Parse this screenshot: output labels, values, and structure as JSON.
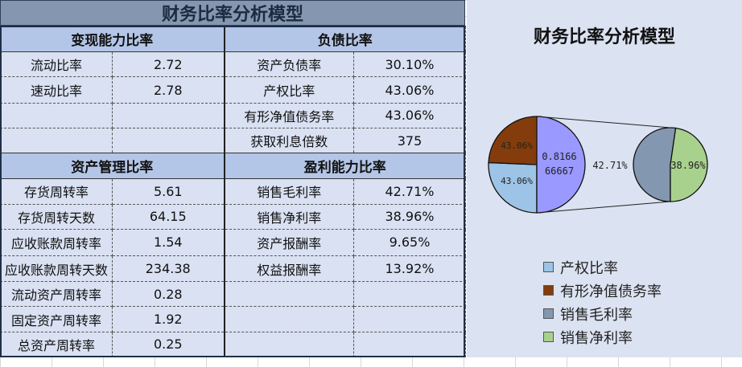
{
  "title": "财务比率分析模型",
  "sections": [
    {
      "header": "变现能力比率",
      "rows": [
        [
          "流动比率",
          "2.72"
        ],
        [
          "速动比率",
          "2.78"
        ],
        [
          "",
          ""
        ],
        [
          "",
          ""
        ]
      ]
    },
    {
      "header": "负债比率",
      "rows": [
        [
          "资产负债率",
          "30.10%"
        ],
        [
          "产权比率",
          "43.06%"
        ],
        [
          "有形净值债务率",
          "43.06%"
        ],
        [
          "获取利息倍数",
          "375"
        ]
      ]
    },
    {
      "header": "资产管理比率",
      "rows": [
        [
          "存货周转率",
          "5.61"
        ],
        [
          "存货周转天数",
          "64.15"
        ],
        [
          "应收账款周转率",
          "1.54"
        ],
        [
          "应收账款周转天数",
          "234.38"
        ],
        [
          "流动资产周转率",
          "0.28"
        ],
        [
          "固定资产周转率",
          "1.92"
        ],
        [
          "总资产周转率",
          "0.25"
        ]
      ]
    },
    {
      "header": "盈利能力比率",
      "rows": [
        [
          "销售毛利率",
          "42.71%"
        ],
        [
          "销售净利率",
          "38.96%"
        ],
        [
          "资产报酬率",
          "9.65%"
        ],
        [
          "权益报酬率",
          "13.92%"
        ],
        [
          "",
          ""
        ],
        [
          "",
          ""
        ],
        [
          "",
          ""
        ]
      ]
    }
  ],
  "chart_data": {
    "type": "pie",
    "title": "财务比率分析模型",
    "subtype": "pie-of-pie",
    "main_pie": [
      {
        "label": "43.06%",
        "value": 0.4306,
        "series": "产权比率",
        "color": "#9dc3e6"
      },
      {
        "label": "43.06%",
        "value": 0.4306,
        "series": "有形净值债务率",
        "color": "#843c0c"
      },
      {
        "label": "0.816666667",
        "value": 0.816666667,
        "series": "",
        "color": "#9999ff"
      }
    ],
    "other_label": "42.71%",
    "secondary_pie": [
      {
        "label": "",
        "value": 0.4271,
        "series": "销售毛利率",
        "color": "#8497b0"
      },
      {
        "label": "38.96%",
        "value": 0.3896,
        "series": "销售净利率",
        "color": "#a9d18e"
      }
    ],
    "legend": [
      {
        "name": "产权比率",
        "color": "#9dc3e6"
      },
      {
        "name": "有形净值债务率",
        "color": "#843c0c"
      },
      {
        "name": "销售毛利率",
        "color": "#8497b0"
      },
      {
        "name": "销售净利率",
        "color": "#a9d18e"
      }
    ]
  }
}
